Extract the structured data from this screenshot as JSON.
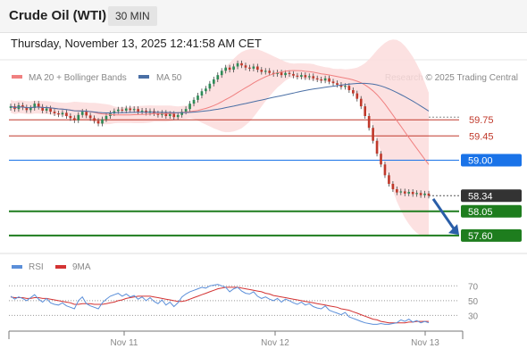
{
  "header": {
    "title": "Crude Oil (WTI)",
    "timeframe": "30 MIN",
    "datetime": "Thursday, November 13, 2025 12:41:58 AM CET"
  },
  "legend": {
    "ma20_label": "MA 20 + Bollinger Bands",
    "ma50_label": "MA 50",
    "attribution": "Research © 2025 Trading Central",
    "rsi_label": "RSI",
    "rsi_ma_label": "9MA"
  },
  "colors": {
    "ma20": "#f08080",
    "ma50": "#4a6fa5",
    "bollinger_fill": "#fbdcdc",
    "candle_up": "#2e8b57",
    "candle_down": "#c0392b",
    "resistance": "#c0392b",
    "last_price": "#1a73e8",
    "support": "#1e7d1e",
    "current_badge": "#333333",
    "rsi": "#5b8fd9",
    "rsi_ma": "#d33333"
  },
  "chart_data": [
    {
      "type": "candlestick",
      "ylim": [
        57.3,
        60.4
      ],
      "x_ticks": [
        "Nov 11",
        "Nov 12",
        "Nov 13"
      ],
      "levels": [
        {
          "label": "59.75",
          "value": 59.75,
          "kind": "resistance"
        },
        {
          "label": "59.45",
          "value": 59.45,
          "kind": "resistance"
        },
        {
          "label": "59.00",
          "value": 59.0,
          "kind": "pivot"
        },
        {
          "label": "58.34",
          "value": 58.34,
          "kind": "current"
        },
        {
          "label": "58.05",
          "value": 58.05,
          "kind": "support"
        },
        {
          "label": "57.60",
          "value": 57.6,
          "kind": "support"
        }
      ],
      "close": [
        60.0,
        59.95,
        60.02,
        59.98,
        59.93,
        59.97,
        60.05,
        59.99,
        59.92,
        59.96,
        59.9,
        59.87,
        59.85,
        59.88,
        59.82,
        59.78,
        59.74,
        59.84,
        59.9,
        59.83,
        59.78,
        59.73,
        59.68,
        59.76,
        59.82,
        59.87,
        59.91,
        59.94,
        59.92,
        59.96,
        59.93,
        59.95,
        59.9,
        59.92,
        59.88,
        59.91,
        59.87,
        59.84,
        59.88,
        59.82,
        59.86,
        59.8,
        59.84,
        59.9,
        59.95,
        60.05,
        60.12,
        60.2,
        60.28,
        60.33,
        60.42,
        60.5,
        60.58,
        60.66,
        60.72,
        60.68,
        60.74,
        60.8,
        60.76,
        60.72,
        60.7,
        60.74,
        60.68,
        60.64,
        60.66,
        60.62,
        60.6,
        60.63,
        60.58,
        60.62,
        60.6,
        60.57,
        60.55,
        60.58,
        60.54,
        60.56,
        60.52,
        60.5,
        60.48,
        60.52,
        60.46,
        60.43,
        60.4,
        60.36,
        60.38,
        60.3,
        60.24,
        60.14,
        60.0,
        59.82,
        59.6,
        59.36,
        59.12,
        58.92,
        58.72,
        58.56,
        58.46,
        58.4,
        58.42,
        58.38,
        58.41,
        58.37,
        58.39,
        58.35,
        58.38,
        58.34
      ],
      "sma20_style": "faint red line with shaded Bollinger band",
      "ma50_style": "dark blue line"
    },
    {
      "type": "line",
      "title": "RSI",
      "ylim": [
        10,
        80
      ],
      "y_ticks": [
        70,
        50,
        30
      ],
      "series": [
        {
          "name": "RSI",
          "values": [
            56,
            52,
            55,
            53,
            50,
            54,
            58,
            52,
            48,
            53,
            47,
            45,
            44,
            47,
            43,
            41,
            39,
            50,
            55,
            46,
            43,
            41,
            39,
            47,
            52,
            56,
            58,
            60,
            56,
            59,
            55,
            57,
            52,
            55,
            50,
            54,
            49,
            46,
            51,
            44,
            48,
            42,
            47,
            55,
            59,
            62,
            64,
            66,
            68,
            67,
            70,
            71,
            72,
            70,
            68,
            62,
            66,
            68,
            63,
            60,
            59,
            62,
            56,
            53,
            55,
            52,
            50,
            53,
            48,
            52,
            50,
            47,
            45,
            48,
            44,
            46,
            42,
            40,
            39,
            43,
            37,
            35,
            33,
            31,
            34,
            28,
            26,
            24,
            22,
            20,
            19,
            18,
            18,
            19,
            18,
            18,
            19,
            20,
            24,
            22,
            25,
            21,
            23,
            20,
            22,
            20
          ],
          "data_note": "approximate"
        },
        {
          "name": "9MA",
          "values": [
            55,
            54,
            54,
            54,
            53,
            53,
            54,
            54,
            53,
            53,
            52,
            51,
            50,
            49,
            48,
            47,
            45,
            45,
            46,
            46,
            46,
            45,
            45,
            45,
            46,
            47,
            48,
            50,
            51,
            53,
            54,
            55,
            56,
            56,
            56,
            56,
            55,
            54,
            53,
            52,
            51,
            50,
            49,
            49,
            50,
            52,
            54,
            56,
            58,
            60,
            62,
            64,
            66,
            67,
            68,
            68,
            68,
            68,
            67,
            66,
            65,
            64,
            63,
            62,
            60,
            59,
            57,
            56,
            55,
            54,
            53,
            52,
            51,
            50,
            49,
            48,
            47,
            46,
            45,
            44,
            43,
            42,
            41,
            39,
            38,
            37,
            35,
            33,
            31,
            29,
            27,
            25,
            24,
            22,
            21,
            20,
            20,
            20,
            20,
            20,
            21,
            21,
            22,
            22,
            22,
            22
          ]
        }
      ]
    }
  ]
}
